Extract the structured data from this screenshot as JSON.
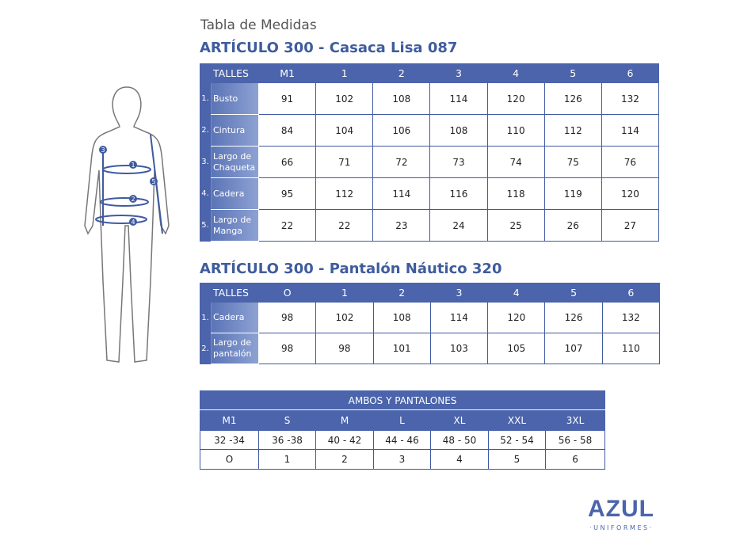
{
  "heading": "Tabla de Medidas",
  "table1": {
    "title": "ARTÍCULO 300 - Casaca Lisa 087",
    "header": "TALLES",
    "sizes": [
      "M1",
      "1",
      "2",
      "3",
      "4",
      "5",
      "6"
    ],
    "rows": [
      {
        "n": "1.",
        "label": "Busto",
        "values": [
          "91",
          "102",
          "108",
          "114",
          "120",
          "126",
          "132"
        ]
      },
      {
        "n": "2.",
        "label": "Cintura",
        "values": [
          "84",
          "104",
          "106",
          "108",
          "110",
          "112",
          "114"
        ]
      },
      {
        "n": "3.",
        "label": "Largo de Chaqueta",
        "values": [
          "66",
          "71",
          "72",
          "73",
          "74",
          "75",
          "76"
        ]
      },
      {
        "n": "4.",
        "label": "Cadera",
        "values": [
          "95",
          "112",
          "114",
          "116",
          "118",
          "119",
          "120"
        ]
      },
      {
        "n": "5.",
        "label": "Largo de Manga",
        "values": [
          "22",
          "22",
          "23",
          "24",
          "25",
          "26",
          "27"
        ]
      }
    ]
  },
  "table2": {
    "title": "ARTÍCULO 300 - Pantalón Náutico 320",
    "header": "TALLES",
    "sizes": [
      "O",
      "1",
      "2",
      "3",
      "4",
      "5",
      "6"
    ],
    "rows": [
      {
        "n": "1.",
        "label": "Cadera",
        "values": [
          "98",
          "102",
          "108",
          "114",
          "120",
          "126",
          "132"
        ]
      },
      {
        "n": "2.",
        "label": "Largo de pantalón",
        "values": [
          "98",
          "98",
          "101",
          "103",
          "105",
          "107",
          "110"
        ]
      }
    ]
  },
  "table3": {
    "title": "AMBOS Y PANTALONES",
    "sizes": [
      "M1",
      "S",
      "M",
      "L",
      "XL",
      "XXL",
      "3XL"
    ],
    "ranges": [
      "32 -34",
      "36 -38",
      "40 - 42",
      "44 - 46",
      "48 - 50",
      "52 - 54",
      "56 - 58"
    ],
    "numbers": [
      "O",
      "1",
      "2",
      "3",
      "4",
      "5",
      "6"
    ]
  },
  "figure_markers": [
    "1",
    "2",
    "3",
    "4",
    "5"
  ],
  "logo": {
    "name": "AZUL",
    "sub": "· U N I F O R M E S ·"
  },
  "colors": {
    "header": "#4b64ab",
    "title": "#3f5c9e"
  }
}
